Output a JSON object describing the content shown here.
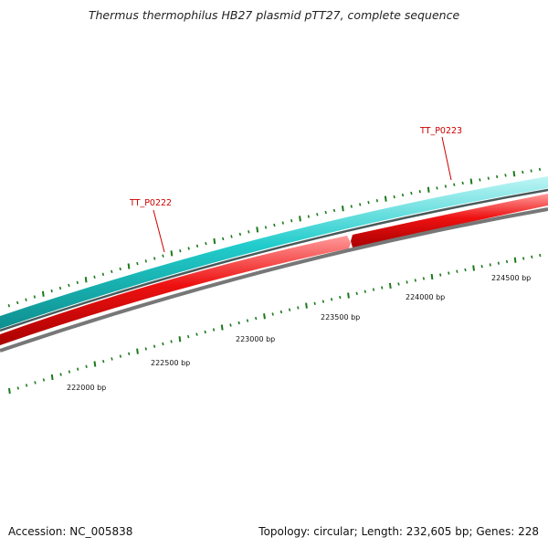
{
  "title": "Thermus thermophilus HB27 plasmid pTT27, complete sequence",
  "accession": "Accession: NC_005838",
  "topology": "Topology: circular; Length: 232,605 bp; Genes: 228",
  "bp_labels": [
    "222000 bp",
    "222500 bp",
    "223000 bp",
    "223500 bp",
    "224000 bp",
    "224500 bp"
  ],
  "gene_labels": [
    "TT_P0222",
    "TT_P0223"
  ],
  "colors": {
    "cyan_track": "#22cccc",
    "red_track": "#ee1111",
    "backbone": "#888888",
    "ticks": "#1a7a1a",
    "gene_label": "#cc0000"
  }
}
